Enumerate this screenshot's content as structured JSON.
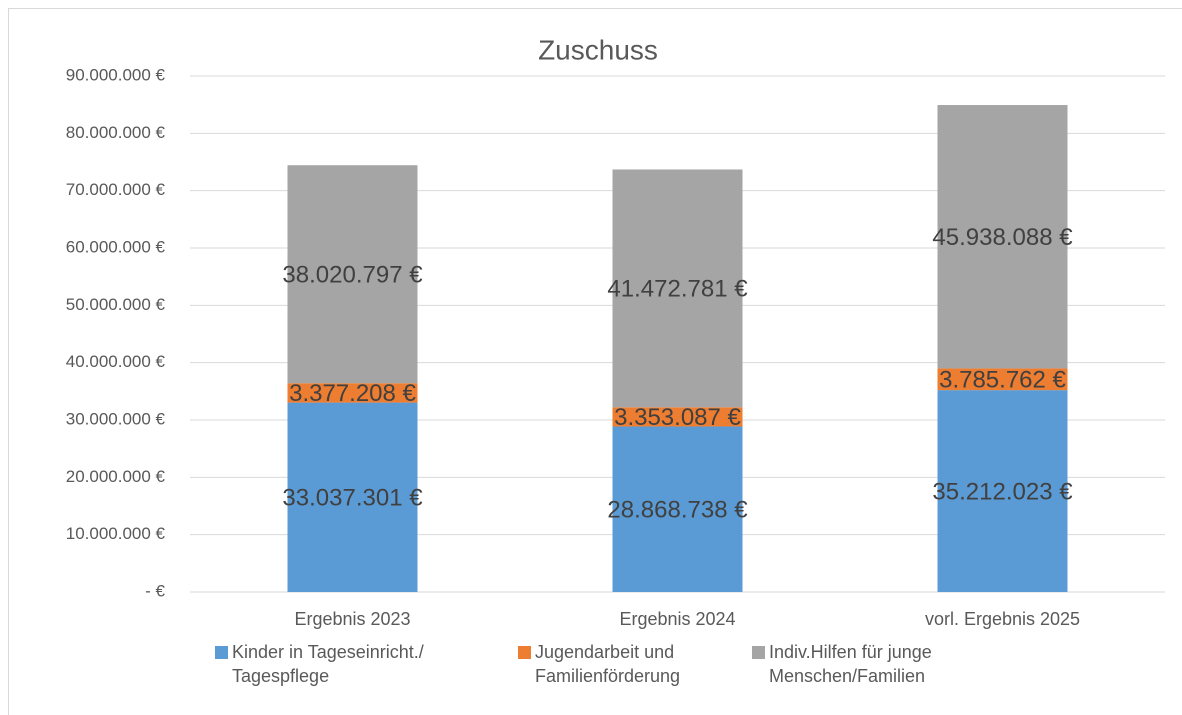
{
  "chart_data": {
    "type": "stacked_bar",
    "title": "Zuschuss",
    "categories": [
      "Ergebnis 2023",
      "Ergebnis 2024",
      "vorl. Ergebnis 2025"
    ],
    "series": [
      {
        "name": "Kinder in Tageseinricht./ Tagespflege",
        "color": "#5b9bd5",
        "values": [
          33037301,
          28868738,
          35212023
        ],
        "value_labels": [
          "33.037.301 €",
          "28.868.738 €",
          "35.212.023 €"
        ]
      },
      {
        "name": "Jugendarbeit und Familienförderung",
        "color": "#ed7d31",
        "values": [
          3377208,
          3353087,
          3785762
        ],
        "value_labels": [
          "3.377.208 €",
          "3.353.087 €",
          "3.785.762 €"
        ]
      },
      {
        "name": "Indiv.Hilfen für junge Menschen/Familien",
        "color": "#a5a5a5",
        "values": [
          38020797,
          41472781,
          45938088
        ],
        "value_labels": [
          "38.020.797 €",
          "41.472.781 €",
          "45.938.088 €"
        ]
      }
    ],
    "ylim": [
      0,
      90000000
    ],
    "yticks": [
      {
        "value": 0,
        "label": "-   €"
      },
      {
        "value": 10000000,
        "label": "10.000.000 €"
      },
      {
        "value": 20000000,
        "label": "20.000.000 €"
      },
      {
        "value": 30000000,
        "label": "30.000.000 €"
      },
      {
        "value": 40000000,
        "label": "40.000.000 €"
      },
      {
        "value": 50000000,
        "label": "50.000.000 €"
      },
      {
        "value": 60000000,
        "label": "60.000.000 €"
      },
      {
        "value": 70000000,
        "label": "70.000.000 €"
      },
      {
        "value": 80000000,
        "label": "80.000.000 €"
      },
      {
        "value": 90000000,
        "label": "90.000.000 €"
      }
    ],
    "grid": true,
    "legend": "bottom"
  }
}
